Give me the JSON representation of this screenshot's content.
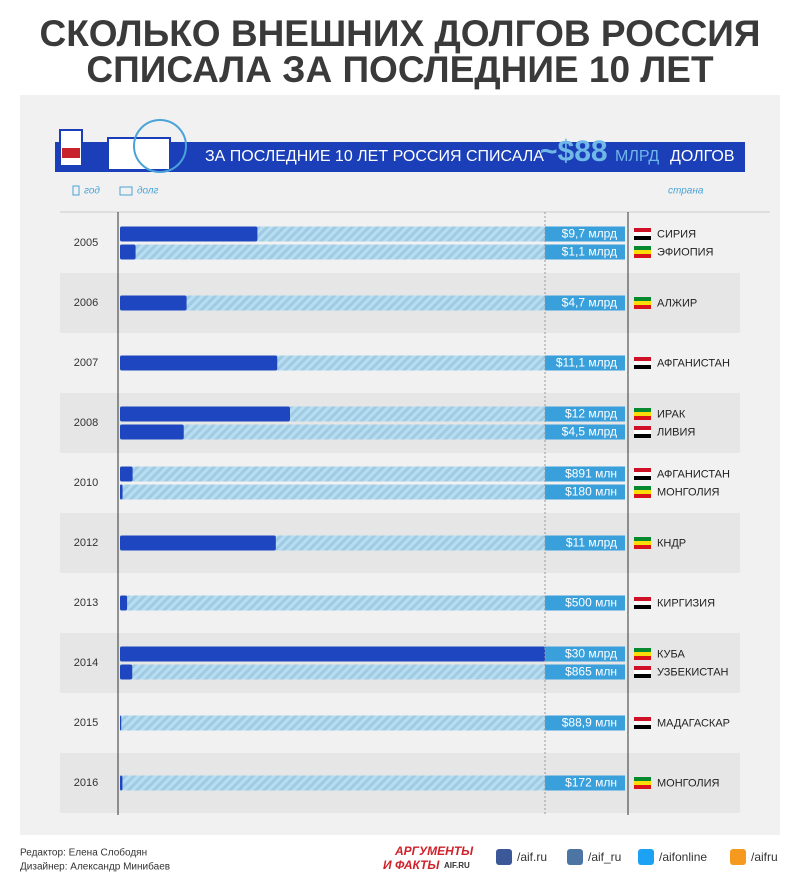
{
  "title_lines": [
    "СКОЛЬКО ВНЕШНИХ ДОЛГОВ РОССИЯ",
    "СПИСАЛА ЗА ПОСЛЕДНИЕ 10 ЛЕТ"
  ],
  "banner": {
    "text": "ЗА ПОСЛЕДНИЕ 10 ЛЕТ РОССИЯ СПИСАЛА",
    "amount": "~$88",
    "unit": "МЛРД",
    "suffix": "ДОЛГОВ"
  },
  "headers": {
    "year": "год",
    "debt": "долг",
    "country": "страна"
  },
  "chart_data": {
    "type": "bar",
    "xlim": [
      0,
      30
    ],
    "color": "#1e46c0",
    "track_color": "#a9d3ea",
    "groups": [
      {
        "label": "2005",
        "countries": [
          "СИРИЯ",
          "ЭФИОПИЯ"
        ],
        "values": [
          9.7,
          1.1
        ],
        "value_labels": [
          "$9,7 млрд",
          "$1,1 млрд"
        ]
      },
      {
        "label": "2006",
        "countries": [
          "АЛЖИР"
        ],
        "values": [
          4.7
        ],
        "value_labels": [
          "$4,7 млрд"
        ]
      },
      {
        "label": "2007",
        "countries": [
          "АФГАНИСТАН"
        ],
        "values": [
          11.1
        ],
        "value_labels": [
          "$11,1 млрд"
        ]
      },
      {
        "label": "2008",
        "countries": [
          "ИРАК",
          "ЛИВИЯ"
        ],
        "values": [
          12,
          4.5
        ],
        "value_labels": [
          "$12 млрд",
          "$4,5 млрд"
        ]
      },
      {
        "label": "2010",
        "countries": [
          "АФГАНИСТАН",
          "МОНГОЛИЯ"
        ],
        "values": [
          0.891,
          0.18
        ],
        "value_labels": [
          "$891 млн",
          "$180 млн"
        ]
      },
      {
        "label": "2012",
        "countries": [
          "КНДР"
        ],
        "values": [
          11
        ],
        "value_labels": [
          "$11 млрд"
        ]
      },
      {
        "label": "2013",
        "countries": [
          "КИРГИЗИЯ"
        ],
        "values": [
          0.5
        ],
        "value_labels": [
          "$500 млн"
        ]
      },
      {
        "label": "2014",
        "countries": [
          "КУБА",
          "УЗБЕКИСТАН"
        ],
        "values": [
          30,
          0.865
        ],
        "value_labels": [
          "$30 млрд",
          "$865 млн"
        ]
      },
      {
        "label": "2015",
        "countries": [
          "МАДАГАСКАР"
        ],
        "values": [
          0.0889
        ],
        "value_labels": [
          "$88,9 млн"
        ]
      },
      {
        "label": "2016",
        "countries": [
          "МОНГОЛИЯ"
        ],
        "values": [
          0.172
        ],
        "value_labels": [
          "$172 млн"
        ]
      }
    ]
  },
  "footer": {
    "credits": [
      "Редактор: Елена Слободян",
      "Дизайнер: Александр Минибаев"
    ],
    "logo": [
      "АРГУМЕНТЫ",
      "И ФАКТЫ",
      "AIF.RU"
    ],
    "social": [
      "/aif.ru",
      "/aif_ru",
      "/aifonline",
      "/aifru"
    ]
  }
}
